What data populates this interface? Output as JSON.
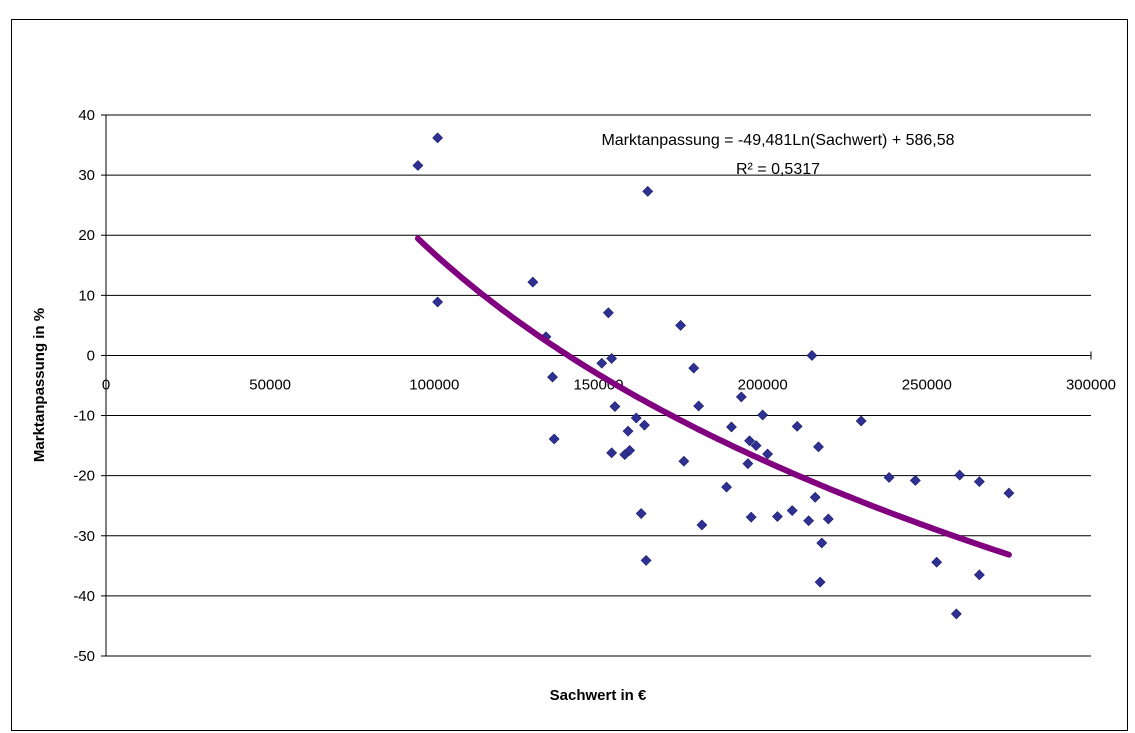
{
  "chart_data": {
    "type": "scatter",
    "xlabel": "Sachwert in €",
    "ylabel": "Marktanpassung in %",
    "xlim": [
      0,
      300000
    ],
    "ylim": [
      -50,
      40
    ],
    "x_ticks": [
      0,
      50000,
      100000,
      150000,
      200000,
      250000,
      300000
    ],
    "x_tick_labels": [
      "0",
      "50000",
      "100000",
      "150000",
      "200000",
      "250000",
      "300000"
    ],
    "y_ticks": [
      40,
      30,
      20,
      10,
      0,
      -10,
      -20,
      -30,
      -40,
      -50
    ],
    "y_tick_labels": [
      "40",
      "30",
      "20",
      "10",
      "0",
      "-10",
      "-20",
      "-30",
      "-40",
      "-50"
    ],
    "grid": "horizontal",
    "point_color": "#2e3192",
    "trend_color": "#800080",
    "equation_text": "Marktanpassung = -49,481Ln(Sachwert) + 586,58",
    "r2_text": "R² = 0,5317",
    "trendline": {
      "type": "logarithmic",
      "a": -49.481,
      "b": 586.58,
      "x_range": [
        95000,
        275000
      ]
    },
    "points": [
      {
        "x": 95000,
        "y": 31.6
      },
      {
        "x": 101000,
        "y": 36.2
      },
      {
        "x": 101000,
        "y": 8.9
      },
      {
        "x": 130000,
        "y": 12.2
      },
      {
        "x": 134000,
        "y": 3.1
      },
      {
        "x": 136000,
        "y": -3.6
      },
      {
        "x": 136500,
        "y": -13.9
      },
      {
        "x": 151000,
        "y": -1.3
      },
      {
        "x": 153000,
        "y": 7.1
      },
      {
        "x": 154000,
        "y": -0.5
      },
      {
        "x": 154000,
        "y": -16.2
      },
      {
        "x": 155000,
        "y": -8.5
      },
      {
        "x": 158000,
        "y": -16.5
      },
      {
        "x": 159000,
        "y": -12.6
      },
      {
        "x": 159500,
        "y": -15.8
      },
      {
        "x": 161500,
        "y": -10.4
      },
      {
        "x": 163000,
        "y": -26.3
      },
      {
        "x": 164000,
        "y": -11.6
      },
      {
        "x": 164500,
        "y": -34.1
      },
      {
        "x": 165000,
        "y": 27.3
      },
      {
        "x": 175000,
        "y": 5.0
      },
      {
        "x": 176000,
        "y": -17.6
      },
      {
        "x": 179000,
        "y": -2.1
      },
      {
        "x": 180500,
        "y": -8.4
      },
      {
        "x": 181500,
        "y": -28.2
      },
      {
        "x": 189000,
        "y": -21.9
      },
      {
        "x": 190500,
        "y": -11.9
      },
      {
        "x": 193500,
        "y": -6.9
      },
      {
        "x": 195500,
        "y": -18.0
      },
      {
        "x": 196000,
        "y": -14.2
      },
      {
        "x": 196500,
        "y": -26.9
      },
      {
        "x": 198000,
        "y": -15.0
      },
      {
        "x": 200000,
        "y": -9.9
      },
      {
        "x": 201500,
        "y": -16.4
      },
      {
        "x": 204500,
        "y": -26.8
      },
      {
        "x": 209000,
        "y": -25.8
      },
      {
        "x": 210500,
        "y": -11.8
      },
      {
        "x": 214000,
        "y": -27.5
      },
      {
        "x": 215000,
        "y": 0.0
      },
      {
        "x": 216000,
        "y": -23.6
      },
      {
        "x": 217000,
        "y": -15.2
      },
      {
        "x": 217500,
        "y": -37.7
      },
      {
        "x": 218000,
        "y": -31.2
      },
      {
        "x": 220000,
        "y": -27.2
      },
      {
        "x": 230000,
        "y": -10.9
      },
      {
        "x": 238500,
        "y": -20.3
      },
      {
        "x": 246500,
        "y": -20.8
      },
      {
        "x": 253000,
        "y": -34.4
      },
      {
        "x": 259000,
        "y": -43.0
      },
      {
        "x": 260000,
        "y": -19.9
      },
      {
        "x": 266000,
        "y": -21.0
      },
      {
        "x": 266000,
        "y": -36.5
      },
      {
        "x": 275000,
        "y": -22.9
      }
    ]
  }
}
